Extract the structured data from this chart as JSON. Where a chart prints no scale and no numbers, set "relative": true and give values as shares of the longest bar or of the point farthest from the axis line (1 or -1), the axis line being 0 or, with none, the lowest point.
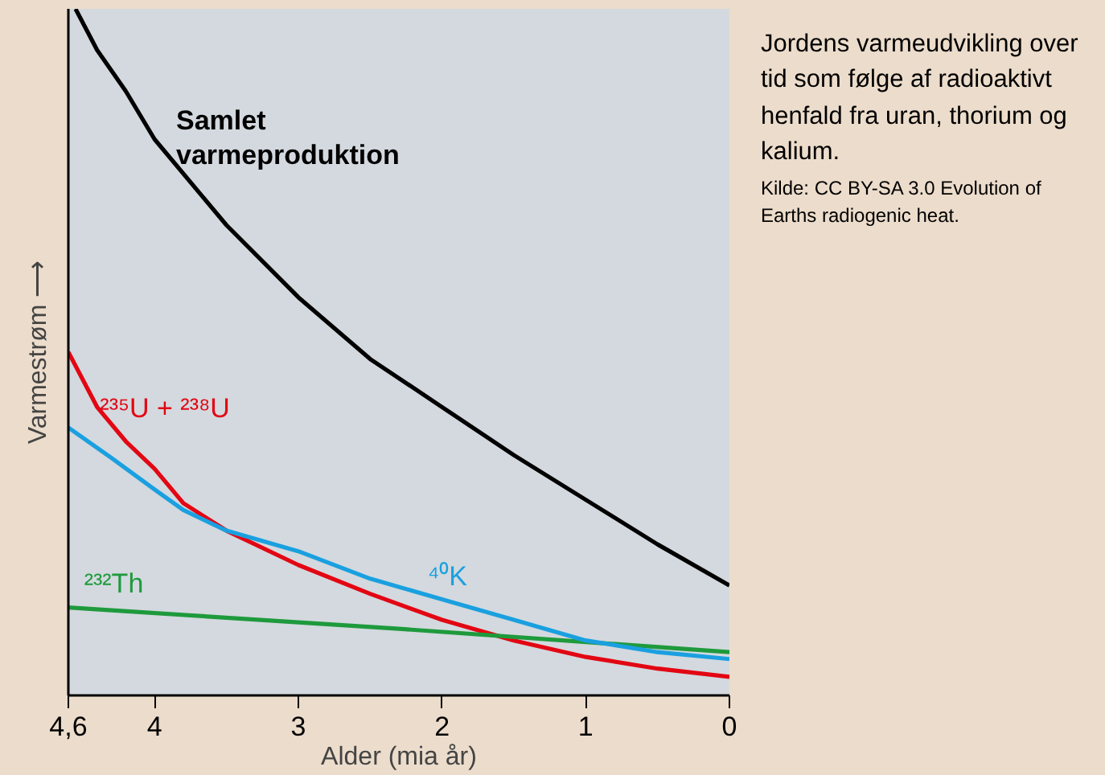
{
  "chart_data": {
    "type": "line",
    "relative": true,
    "xlabel": "Alder (mia år)",
    "ylabel": "Varmestrøm ⟶",
    "xlim": [
      4.6,
      0
    ],
    "xticks": [
      {
        "value": 4.6,
        "label": "4,6"
      },
      4,
      3,
      2,
      1,
      0
    ],
    "grid": false,
    "line_style": "solid",
    "marker": "none",
    "tick_labels": "x",
    "series": [
      {
        "name": "Samlet\nvarmeproduktion",
        "color": "#000000",
        "x": [
          4.55,
          4.4,
          4.2,
          4.0,
          3.5,
          3,
          2.5,
          2,
          1.5,
          1,
          0.5,
          0
        ],
        "values": [
          1.0,
          0.94,
          0.88,
          0.81,
          0.685,
          0.58,
          0.49,
          0.42,
          0.35,
          0.285,
          0.22,
          0.16
        ]
      },
      {
        "name": "²³⁵U + ²³⁸U",
        "color": "#e30613",
        "x": [
          4.6,
          4.4,
          4.2,
          4.0,
          3.8,
          3.5,
          3,
          2.5,
          2,
          1.5,
          1,
          0.5,
          0
        ],
        "values": [
          0.5,
          0.42,
          0.37,
          0.33,
          0.28,
          0.24,
          0.19,
          0.148,
          0.11,
          0.08,
          0.056,
          0.039,
          0.027
        ]
      },
      {
        "name": "²³²Th",
        "color": "#1e9a3c",
        "x": [
          4.6,
          2.3,
          0
        ],
        "values": [
          0.128,
          0.097,
          0.063
        ]
      },
      {
        "name": "⁴⁰K",
        "color": "#1aa0e0",
        "x": [
          4.6,
          4.3,
          4.0,
          3.8,
          3.5,
          3,
          2.5,
          2,
          1.5,
          1,
          0.5,
          0
        ],
        "values": [
          0.39,
          0.346,
          0.3,
          0.27,
          0.24,
          0.21,
          0.17,
          0.14,
          0.11,
          0.08,
          0.063,
          0.053
        ]
      }
    ],
    "annotations": [
      "Jordens varmeudvikling over tid som følge af radioaktivt henfald fra uran, thorium og kalium.",
      "Kilde: CC BY-SA 3.0 Evolution of Earths radiogenic heat."
    ]
  }
}
